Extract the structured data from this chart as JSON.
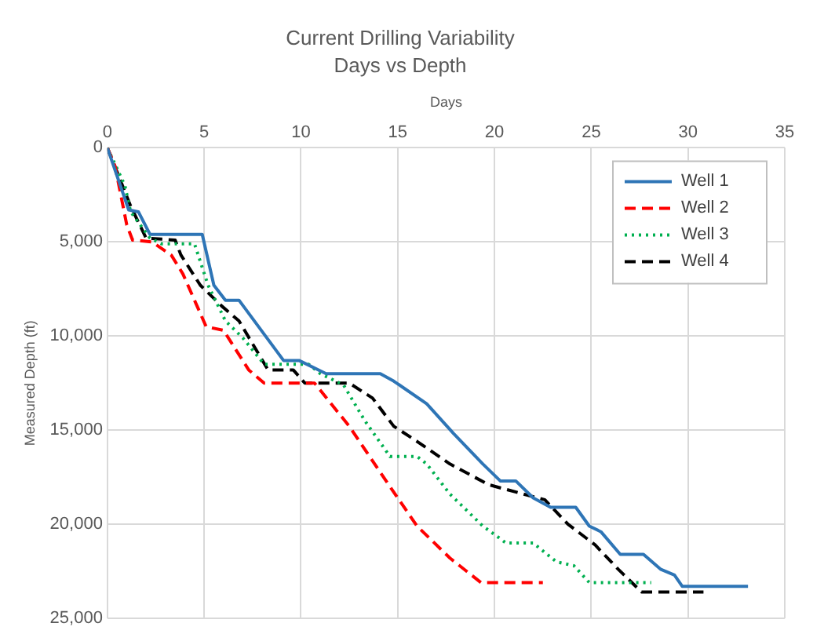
{
  "chart_data": {
    "type": "line",
    "title": "Current Drilling Variability",
    "subtitle": "Days vs Depth",
    "xlabel": "Days",
    "ylabel": "Measured Depth (ft)",
    "xlim": [
      0,
      35
    ],
    "xticks": [
      0,
      5,
      10,
      15,
      20,
      25,
      30,
      35
    ],
    "ylim": [
      25000,
      0
    ],
    "yticks": [
      0,
      {
        "value": 5000,
        "label": "5,000"
      },
      {
        "value": 10000,
        "label": "10,000"
      },
      {
        "value": 15000,
        "label": "15,000"
      },
      {
        "value": 20000,
        "label": "20,000"
      },
      {
        "value": 25000,
        "label": "25,000"
      }
    ],
    "grid": true,
    "legend": "top right",
    "marker": "none",
    "series": [
      {
        "name": "Well 1",
        "color": "#2e75b6",
        "line_style": "solid",
        "x": [
          0,
          1.1,
          1.6,
          2.2,
          4.9,
          5.5,
          6.1,
          6.8,
          9.1,
          9.9,
          11.3,
          14.1,
          14.8,
          16.5,
          17.9,
          19.4,
          20.3,
          21.1,
          22.0,
          22.9,
          24.2,
          24.9,
          25.5,
          26.5,
          27.7,
          28.6,
          29.3,
          29.7,
          33.1
        ],
        "values": [
          0,
          3300,
          3400,
          4600,
          4600,
          7300,
          8100,
          8100,
          11300,
          11300,
          12000,
          12000,
          12400,
          13600,
          15200,
          16800,
          17700,
          17700,
          18600,
          19100,
          19100,
          20100,
          20400,
          21600,
          21600,
          22400,
          22700,
          23300,
          23300
        ]
      },
      {
        "name": "Well 2",
        "color": "#ff0000",
        "line_style": "dashed",
        "x": [
          0,
          0.4,
          1.0,
          1.3,
          2.3,
          3.3,
          3.9,
          5.1,
          6.0,
          7.3,
          8.1,
          10.7,
          12.5,
          14.2,
          16.0,
          17.7,
          19.3,
          22.5
        ],
        "values": [
          0,
          1000,
          4100,
          4900,
          5000,
          5700,
          6700,
          9500,
          9700,
          11800,
          12500,
          12500,
          14800,
          17400,
          20100,
          21800,
          23100,
          23100
        ]
      },
      {
        "name": "Well 3",
        "color": "#00b050",
        "line_style": "dotted",
        "x": [
          0,
          0.9,
          1.2,
          2.2,
          2.8,
          4.5,
          5.2,
          6.1,
          7.0,
          8.1,
          10.4,
          11.0,
          12.2,
          13.3,
          14.6,
          16.0,
          16.5,
          17.7,
          18.6,
          19.4,
          20.6,
          22.0,
          23.2,
          24.1,
          24.9,
          28.1
        ],
        "values": [
          0,
          2000,
          3400,
          4800,
          5100,
          5100,
          7300,
          9200,
          10100,
          11500,
          11500,
          12000,
          12600,
          14500,
          16400,
          16400,
          16800,
          18400,
          19300,
          20100,
          21000,
          21000,
          22000,
          22200,
          23100,
          23100
        ]
      },
      {
        "name": "Well 4",
        "color": "#000000",
        "line_style": "dashed",
        "x": [
          0,
          1.2,
          2.0,
          3.5,
          3.8,
          4.8,
          5.9,
          6.8,
          8.3,
          9.6,
          10.2,
          12.5,
          13.7,
          14.8,
          16.0,
          17.7,
          19.7,
          21.5,
          22.6,
          23.8,
          25.2,
          26.4,
          27.6,
          30.8
        ],
        "values": [
          0,
          3100,
          4800,
          4900,
          5700,
          7300,
          8400,
          9200,
          11800,
          11800,
          12500,
          12500,
          13300,
          14800,
          15600,
          16800,
          17900,
          18400,
          18700,
          20000,
          21100,
          22400,
          23600,
          23600
        ]
      }
    ]
  }
}
